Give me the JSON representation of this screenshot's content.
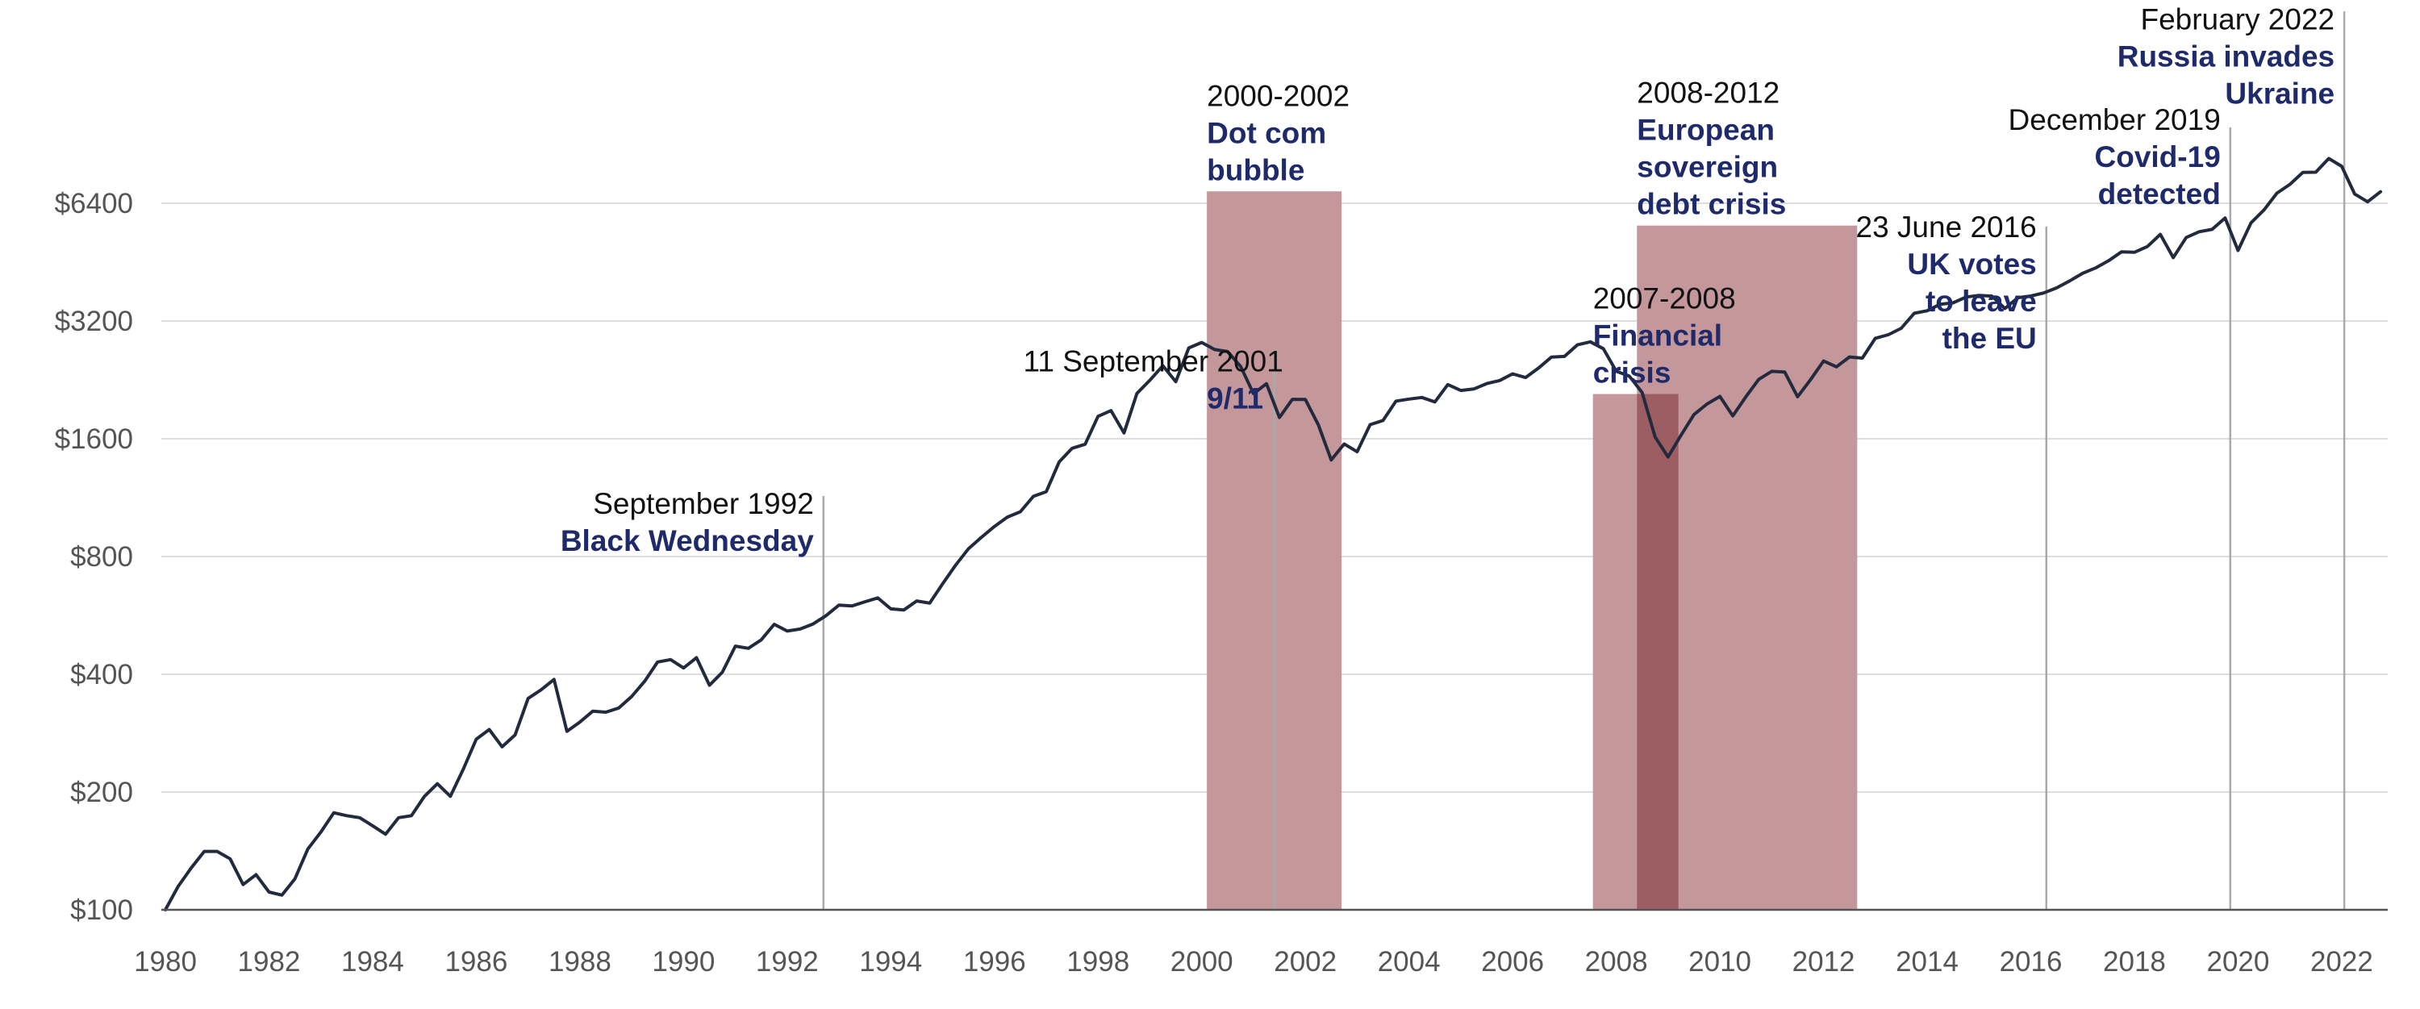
{
  "chart_data": {
    "type": "line",
    "title": "",
    "xlabel": "",
    "ylabel": "",
    "x_range": [
      1980,
      2023.2
    ],
    "ylim": [
      100,
      9000
    ],
    "y_scale": "log2",
    "grid": true,
    "colors": {
      "line": "#232a3e",
      "shade": "#c4979b",
      "shade_overlap": "#9c5e63",
      "grid": "#dddddd",
      "event_line": "#aaaaaa",
      "annotation_title": "#1f2a6b",
      "annotation_date": "#111111",
      "tick_text": "#555555"
    },
    "y_ticks": [
      {
        "value": 100,
        "label": "$100"
      },
      {
        "value": 200,
        "label": "$200"
      },
      {
        "value": 400,
        "label": "$400"
      },
      {
        "value": 800,
        "label": "$800"
      },
      {
        "value": 1600,
        "label": "$1600"
      },
      {
        "value": 3200,
        "label": "$3200"
      },
      {
        "value": 6400,
        "label": "$6400"
      }
    ],
    "x_ticks": [
      {
        "value": 1980,
        "label": "1980"
      },
      {
        "value": 1982,
        "label": "1982"
      },
      {
        "value": 1984,
        "label": "1984"
      },
      {
        "value": 1986,
        "label": "1986"
      },
      {
        "value": 1988,
        "label": "1988"
      },
      {
        "value": 1990,
        "label": "1990"
      },
      {
        "value": 1992,
        "label": "1992"
      },
      {
        "value": 1994,
        "label": "1994"
      },
      {
        "value": 1996,
        "label": "1996"
      },
      {
        "value": 1998,
        "label": "1998"
      },
      {
        "value": 2000,
        "label": "2000"
      },
      {
        "value": 2002,
        "label": "2002"
      },
      {
        "value": 2004,
        "label": "2004"
      },
      {
        "value": 2006,
        "label": "2006"
      },
      {
        "value": 2008,
        "label": "2008"
      },
      {
        "value": 2010,
        "label": "2010"
      },
      {
        "value": 2012,
        "label": "2012"
      },
      {
        "value": 2014,
        "label": "2014"
      },
      {
        "value": 2016,
        "label": "2016"
      },
      {
        "value": 2018,
        "label": "2018"
      },
      {
        "value": 2020,
        "label": "2020"
      },
      {
        "value": 2022,
        "label": "2022"
      }
    ],
    "series": [
      {
        "points": [
          [
            1980.0,
            100
          ],
          [
            1980.25,
            115
          ],
          [
            1980.5,
            128
          ],
          [
            1980.75,
            141
          ],
          [
            1981.0,
            141
          ],
          [
            1981.25,
            135
          ],
          [
            1981.5,
            116
          ],
          [
            1981.75,
            123
          ],
          [
            1982.0,
            111
          ],
          [
            1982.25,
            109
          ],
          [
            1982.5,
            120
          ],
          [
            1982.75,
            143
          ],
          [
            1983.0,
            158
          ],
          [
            1983.25,
            177
          ],
          [
            1983.5,
            174
          ],
          [
            1983.75,
            172
          ],
          [
            1984.0,
            164
          ],
          [
            1984.25,
            156
          ],
          [
            1984.5,
            172
          ],
          [
            1984.75,
            174
          ],
          [
            1985.0,
            195
          ],
          [
            1985.25,
            210
          ],
          [
            1985.5,
            195
          ],
          [
            1985.75,
            229
          ],
          [
            1986.0,
            273
          ],
          [
            1986.25,
            289
          ],
          [
            1986.5,
            261
          ],
          [
            1986.75,
            280
          ],
          [
            1987.0,
            347
          ],
          [
            1987.25,
            365
          ],
          [
            1987.5,
            388
          ],
          [
            1987.75,
            286
          ],
          [
            1988.0,
            302
          ],
          [
            1988.25,
            322
          ],
          [
            1988.5,
            320
          ],
          [
            1988.75,
            328
          ],
          [
            1989.0,
            351
          ],
          [
            1989.25,
            384
          ],
          [
            1989.5,
            430
          ],
          [
            1989.75,
            436
          ],
          [
            1990.0,
            415
          ],
          [
            1990.25,
            441
          ],
          [
            1990.5,
            375
          ],
          [
            1990.75,
            405
          ],
          [
            1991.0,
            472
          ],
          [
            1991.25,
            466
          ],
          [
            1991.5,
            490
          ],
          [
            1991.75,
            537
          ],
          [
            1992.0,
            516
          ],
          [
            1992.25,
            522
          ],
          [
            1992.5,
            538
          ],
          [
            1992.75,
            565
          ],
          [
            1993.0,
            601
          ],
          [
            1993.25,
            598
          ],
          [
            1993.5,
            613
          ],
          [
            1993.75,
            627
          ],
          [
            1994.0,
            588
          ],
          [
            1994.25,
            584
          ],
          [
            1994.5,
            616
          ],
          [
            1994.75,
            608
          ],
          [
            1995.0,
            681
          ],
          [
            1995.25,
            760
          ],
          [
            1995.5,
            838
          ],
          [
            1995.75,
            896
          ],
          [
            1996.0,
            955
          ],
          [
            1996.25,
            1009
          ],
          [
            1996.5,
            1041
          ],
          [
            1996.75,
            1140
          ],
          [
            1997.0,
            1172
          ],
          [
            1997.25,
            1397
          ],
          [
            1997.5,
            1513
          ],
          [
            1997.75,
            1549
          ],
          [
            1998.0,
            1826
          ],
          [
            1998.25,
            1888
          ],
          [
            1998.5,
            1656
          ],
          [
            1998.75,
            2089
          ],
          [
            1999.0,
            2258
          ],
          [
            1999.25,
            2460
          ],
          [
            1999.5,
            2239
          ],
          [
            1999.75,
            2731
          ],
          [
            2000.0,
            2820
          ],
          [
            2000.25,
            2705
          ],
          [
            2000.5,
            2673
          ],
          [
            2000.75,
            2451
          ],
          [
            2001.0,
            2086
          ],
          [
            2001.25,
            2213
          ],
          [
            2001.5,
            1814
          ],
          [
            2001.75,
            2018
          ],
          [
            2002.0,
            2016
          ],
          [
            2002.25,
            1737
          ],
          [
            2002.5,
            1412
          ],
          [
            2002.75,
            1552
          ],
          [
            2003.0,
            1482
          ],
          [
            2003.25,
            1739
          ],
          [
            2003.5,
            1782
          ],
          [
            2003.75,
            1997
          ],
          [
            2004.0,
            2021
          ],
          [
            2004.25,
            2040
          ],
          [
            2004.5,
            1988
          ],
          [
            2004.75,
            2201
          ],
          [
            2005.0,
            2126
          ],
          [
            2005.25,
            2145
          ],
          [
            2005.5,
            2214
          ],
          [
            2005.75,
            2254
          ],
          [
            2006.0,
            2345
          ],
          [
            2006.25,
            2294
          ],
          [
            2006.5,
            2426
          ],
          [
            2006.75,
            2588
          ],
          [
            2007.0,
            2598
          ],
          [
            2007.25,
            2781
          ],
          [
            2007.5,
            2831
          ],
          [
            2007.75,
            2719
          ],
          [
            2008.0,
            2382
          ],
          [
            2008.25,
            2315
          ],
          [
            2008.5,
            2100
          ],
          [
            2008.75,
            1617
          ],
          [
            2009.0,
            1437
          ],
          [
            2009.25,
            1634
          ],
          [
            2009.5,
            1846
          ],
          [
            2009.75,
            1962
          ],
          [
            2010.0,
            2053
          ],
          [
            2010.25,
            1831
          ],
          [
            2010.5,
            2047
          ],
          [
            2010.75,
            2270
          ],
          [
            2011.0,
            2379
          ],
          [
            2011.25,
            2370
          ],
          [
            2011.5,
            2049
          ],
          [
            2011.75,
            2266
          ],
          [
            2012.0,
            2529
          ],
          [
            2012.25,
            2444
          ],
          [
            2012.5,
            2589
          ],
          [
            2012.75,
            2572
          ],
          [
            2013.0,
            2891
          ],
          [
            2013.25,
            2952
          ],
          [
            2013.5,
            3066
          ],
          [
            2013.75,
            3350
          ],
          [
            2014.0,
            3399
          ],
          [
            2014.25,
            3532
          ],
          [
            2014.5,
            3560
          ],
          [
            2014.75,
            3685
          ],
          [
            2015.0,
            3721
          ],
          [
            2015.25,
            3706
          ],
          [
            2015.5,
            3445
          ],
          [
            2015.75,
            3670
          ],
          [
            2016.0,
            3708
          ],
          [
            2016.25,
            3775
          ],
          [
            2016.5,
            3889
          ],
          [
            2016.75,
            4051
          ],
          [
            2017.0,
            4237
          ],
          [
            2017.25,
            4373
          ],
          [
            2017.5,
            4563
          ],
          [
            2017.75,
            4807
          ],
          [
            2018.0,
            4796
          ],
          [
            2018.25,
            4960
          ],
          [
            2018.5,
            5329
          ],
          [
            2018.75,
            4648
          ],
          [
            2019.0,
            5234
          ],
          [
            2019.25,
            5413
          ],
          [
            2019.5,
            5487
          ],
          [
            2019.75,
            5868
          ],
          [
            2020.0,
            4847
          ],
          [
            2020.25,
            5702
          ],
          [
            2020.5,
            6154
          ],
          [
            2020.75,
            6792
          ],
          [
            2021.0,
            7153
          ],
          [
            2021.25,
            7672
          ],
          [
            2021.5,
            7682
          ],
          [
            2021.75,
            8328
          ],
          [
            2022.0,
            7957
          ],
          [
            2022.25,
            6758
          ],
          [
            2022.5,
            6454
          ],
          [
            2022.75,
            6849
          ]
        ]
      }
    ],
    "shaded_periods": [
      {
        "start": 2000.1,
        "end": 2002.7,
        "top_value": 6864,
        "date": "2000-2002",
        "title_lines": [
          "Dot com",
          "bubble"
        ],
        "label_align": "left"
      },
      {
        "start": 2007.55,
        "end": 2009.2,
        "top_value": 2082,
        "date": "2007-2008",
        "title_lines": [
          "Financial",
          "crisis"
        ],
        "label_align": "left"
      },
      {
        "start": 2008.4,
        "end": 2012.65,
        "top_value": 5612,
        "date": "2008-2012",
        "title_lines": [
          "European",
          "sovereign",
          "debt crisis"
        ],
        "label_align": "left"
      }
    ],
    "events": [
      {
        "x": 1992.7,
        "top_value": 1142,
        "date": "September 1992",
        "title_lines": [
          "Black Wednesday"
        ],
        "label_align": "right",
        "label_top_value": 1030
      },
      {
        "x": 2001.4,
        "top_value": 2700,
        "date": "11 September 2001",
        "title_lines": [
          "9/11"
        ],
        "label_align": "center",
        "label_top_value": 2380
      },
      {
        "x": 2016.3,
        "top_value": 5580,
        "date": "23 June 2016",
        "title_lines": [
          "UK votes",
          "to leave",
          "the EU"
        ],
        "label_align": "right",
        "label_top_value": 5240
      },
      {
        "x": 2019.85,
        "top_value": 9999,
        "date": "December 2019",
        "title_lines": [
          "Covid-19",
          "detected"
        ],
        "label_align": "right",
        "label_top_value": 9850
      },
      {
        "x": 2022.05,
        "top_value": 19800,
        "date": "February 2022",
        "title_lines": [
          "Russia invades",
          "Ukraine"
        ],
        "label_align": "right",
        "label_top_value": 17800
      }
    ]
  }
}
